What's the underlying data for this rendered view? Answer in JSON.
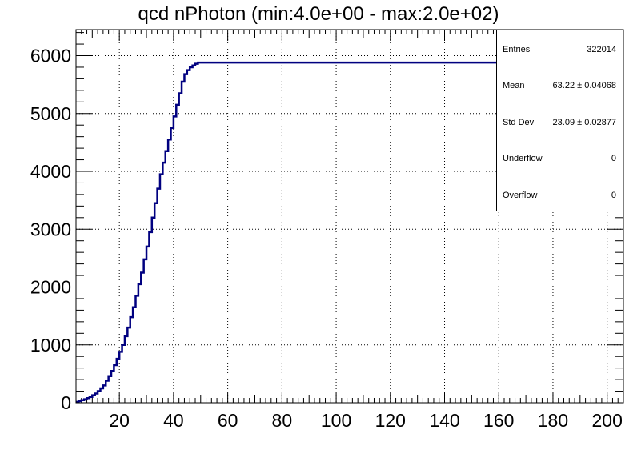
{
  "chart_data": {
    "type": "histogram",
    "title": "qcd nPhoton (min:4.0e+00 - max:2.0e+02)",
    "xlabel": "",
    "ylabel": "",
    "xlim": [
      4,
      206
    ],
    "ylim": [
      0,
      6450
    ],
    "x_ticks": [
      20,
      40,
      60,
      80,
      100,
      120,
      140,
      160,
      180,
      200
    ],
    "x_tick_labels": [
      "20",
      "40",
      "60",
      "80",
      "100",
      "120",
      "140",
      "160",
      "180",
      "200"
    ],
    "y_ticks": [
      0,
      1000,
      2000,
      3000,
      4000,
      5000,
      6000
    ],
    "y_tick_labels": [
      "0",
      "1000",
      "2000",
      "3000",
      "4000",
      "5000",
      "6000"
    ],
    "grid": true,
    "line_color": "#000080",
    "bin_width": 1,
    "bin_start": 4,
    "values": [
      15,
      30,
      45,
      60,
      80,
      100,
      130,
      160,
      200,
      250,
      300,
      380,
      460,
      550,
      650,
      760,
      880,
      1000,
      1150,
      1300,
      1480,
      1650,
      1850,
      2050,
      2250,
      2480,
      2700,
      2950,
      3200,
      3450,
      3700,
      3950,
      4150,
      4350,
      4550,
      4750,
      4950,
      5150,
      5350,
      5550,
      5680,
      5750,
      5800,
      5830,
      5860,
      5880,
      5880,
      5880,
      5880,
      5880,
      5880,
      5880,
      5880,
      5880,
      5880,
      5880,
      5880,
      5880,
      5880,
      5880,
      5880,
      5880,
      5880,
      5880,
      5880,
      5880,
      5880,
      5880,
      5880,
      5880,
      5880,
      5880,
      5880,
      5880,
      5880,
      5880,
      5880,
      5880,
      5880,
      5880,
      5880,
      5880,
      5880,
      5880,
      5880,
      5880,
      5880,
      5880,
      5880,
      5880,
      5880,
      5880,
      5880,
      5880,
      5880,
      5880,
      5880,
      5880,
      5880,
      5880,
      5880,
      5880,
      5880,
      5880,
      5880,
      5880,
      5880,
      5880,
      5880,
      5880,
      5880,
      5880,
      5880,
      5880,
      5880,
      5880,
      5880,
      5880,
      5880,
      5880,
      5880,
      5880,
      5880,
      5880,
      5880,
      5880,
      5880,
      5880,
      5880,
      5880,
      5880,
      5880,
      5880,
      5880,
      5880,
      5880,
      5880,
      5880,
      5880,
      5880,
      5880,
      5880,
      5880,
      5880,
      5880,
      5880,
      5880,
      5880,
      5880,
      5880,
      5880,
      5880,
      5880,
      5880,
      5880,
      5880,
      5880,
      5880,
      5880,
      5880,
      5880,
      5880,
      5880,
      5880,
      5880,
      5880,
      5880,
      5880,
      5880,
      5880,
      5880,
      5880,
      5880,
      5880,
      5880,
      5880,
      5880,
      5880,
      5880,
      5880,
      5880,
      5880,
      5880,
      5880,
      5880,
      5880,
      5880,
      5880,
      5880,
      5880,
      5880,
      5880,
      5880,
      5880,
      5880,
      5880,
      5880,
      5880,
      5880,
      5880,
      5880,
      5880
    ]
  },
  "stats": {
    "rows": [
      {
        "label": "Entries",
        "value": "322014"
      },
      {
        "label": "Mean",
        "value": "63.22 ± 0.04068"
      },
      {
        "label": "Std Dev",
        "value": "23.09 ± 0.02877"
      },
      {
        "label": "Underflow",
        "value": "0"
      },
      {
        "label": "Overflow",
        "value": "0"
      }
    ]
  }
}
